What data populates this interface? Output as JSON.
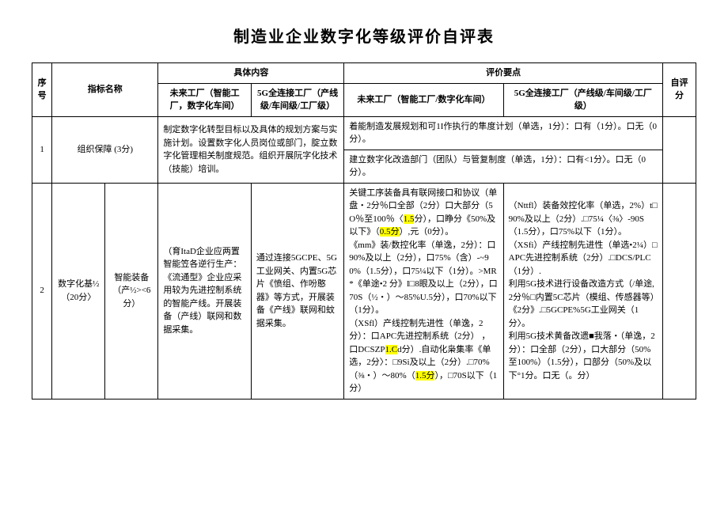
{
  "title": "制造业企业数字化等级评价自评表",
  "headers": {
    "seq": "序号",
    "indicator": "指标名称",
    "content": "具体内容",
    "content_a": "未来工厂（智能工厂，数字化车间）",
    "content_b": "5G全连接工厂（产线级/车间级/工厂级）",
    "eval": "评价要点",
    "eval_a": "未来工厂（智能工厂/数字化车间）",
    "eval_b": "5G全连接工厂（产线级/车间级/工厂级）",
    "score": "自评分"
  },
  "row1": {
    "seq": "1",
    "name": "组织保障 (3分)",
    "content": "制定数字化转型目标以及具体的规划方案与实施计划。设置数字化人员岗位或部门，腚立数字化管理相关制度规范。组织开展阮字化技术（技能）培训。",
    "eval1": "着能制造发展规划和可1I作执行的隼度计划（单选，1分）：口有（1分）。口无（0分）。",
    "eval2": "建立数字化改造部门（团队）与管复制度（单选，1分）：口有<1分〉。口无（0分）。"
  },
  "row2": {
    "seq": "2",
    "group": "数字化基½（20分〉",
    "name": "智能装备（产½><6分）",
    "content_a": "（育ItaD企业应两置智能笠各逆行生产：《流通型》企业应采用较为先进控制系统的智能产线。开展装备（产线）联网和数据采集。",
    "content_b": "通过连接5GCPE、5G工业网关、内置5G芯片《愤组、作吩憨器》等方式，开展装备《产线》联网和蚊据采集。",
    "eval_a_1": "关键工序装备具有联网接口和协议（单盘・2分％口全部（2分）口大部分（5O％至100％〈",
    "eval_a_1b": "），口睁分《50%及以下》（",
    "eval_a_1c": "）,元（0分）。",
    "eval_a_2": "《mm》装/数控化率（单逸，2分）：口90%及以上（2分），口75%（含）-~90%（1.5分），口75¼以下（1分）。>MR*《单途•2",
    "eval_a_3": "分》I□8眼及以上（2分），口70S（½・）～85%U.5分），口70%以下（1分）。",
    "eval_a_4": "（XSfl）产线控制先进性（单逸，2分）：口APC先进控制系统（2分）",
    "eval_a_5": "，口DCSZP",
    "eval_a_5b": "d分）.自动化枭集率《单选，2分〉：□9Si及以上（2分）.□70%（⅜・）～80%（",
    "eval_a_5c": "），□70S以下（1分）",
    "eval_b_1": "（Nttfl）装备效控化率（单选，2%）t□90%及以上（2分）.□75¼〈⅜〉-90S（1.5分），口75%以下（1分）。",
    "eval_b_2": "（XSfi）产线控制先进性（单选•2¼）□APC先进控制系统（2分）.□DCS/PLC（1分）.",
    "eval_b_3": "利用5G技术进行设备改造方式（/单途,2分％□内置5C芯片（模组、传感器等）《2分》.□5GCPE%5G工业网关（1分〉。",
    "eval_b_4": "利用5G技术黄备改遗■我落・（单逸，2分）：口全部（2分），口大部分（50%至100%）（1.5分），口部分（50%及以下°1分。口无（。分）",
    "hl_1_5": "1.5",
    "hl_1_5b": "分",
    "hl_0_5": "0.5分",
    "hl_1c": "1.C",
    "hl_1_5c": "1.5分"
  }
}
